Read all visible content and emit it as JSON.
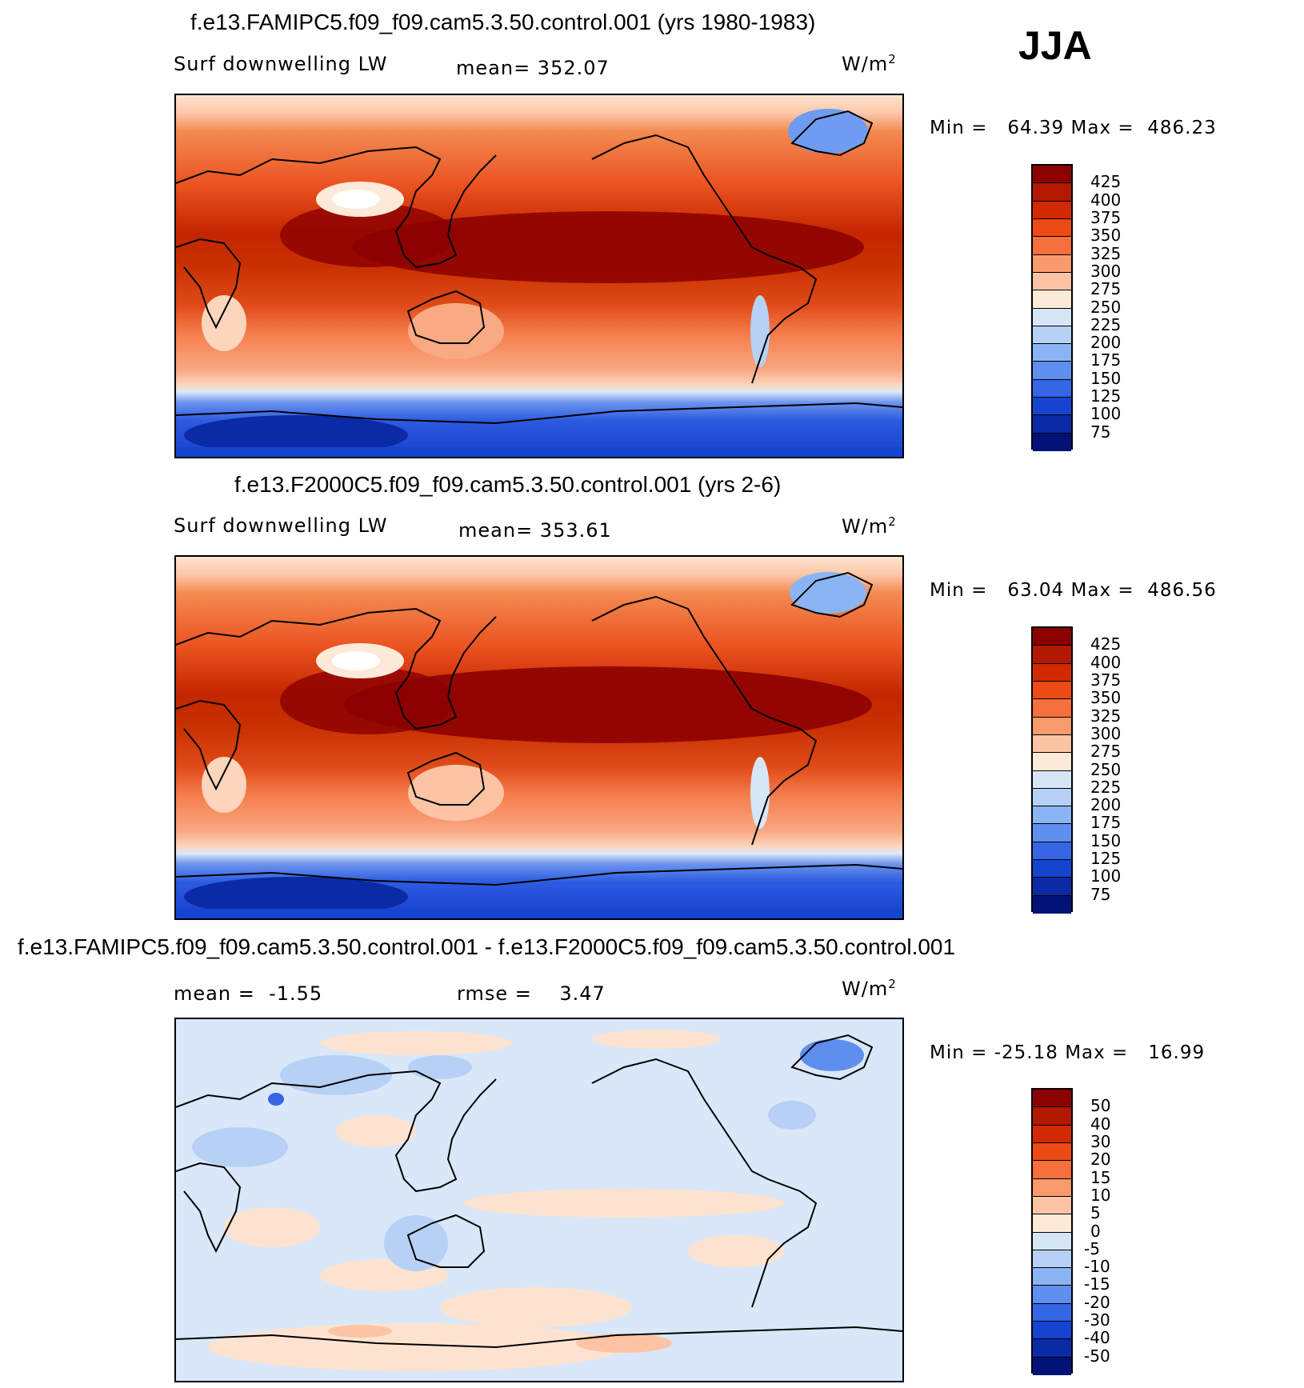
{
  "season": "JJA",
  "panels": [
    {
      "title": "f.e13.FAMIPC5.f09_f09.cam5.3.50.control.001 (yrs 1980-1983)",
      "variable": "Surf downwelling LW",
      "mean_text": "mean= 352.07",
      "units_base": "W/m",
      "units_exp": "2",
      "min_label": "Min =",
      "min_value": "64.39",
      "max_label": "Max =",
      "max_value": "486.23",
      "colorbar_labels": [
        "425",
        "400",
        "375",
        "350",
        "325",
        "300",
        "275",
        "250",
        "225",
        "200",
        "175",
        "150",
        "125",
        "100",
        "75"
      ],
      "colorbar_colors": [
        "#8b0000",
        "#b31900",
        "#d22a00",
        "#ec4a14",
        "#f6703d",
        "#f99a6c",
        "#fcc4a4",
        "#fde9d8",
        "#d6e6f7",
        "#b6d1f5",
        "#8bb4f5",
        "#5f8ef0",
        "#3466e6",
        "#1544d1",
        "#0a2aa6",
        "#001278"
      ]
    },
    {
      "title": "f.e13.F2000C5.f09_f09.cam5.3.50.control.001 (yrs 2-6)",
      "variable": "Surf downwelling LW",
      "mean_text": "mean= 353.61",
      "units_base": "W/m",
      "units_exp": "2",
      "min_label": "Min =",
      "min_value": "63.04",
      "max_label": "Max =",
      "max_value": "486.56",
      "colorbar_labels": [
        "425",
        "400",
        "375",
        "350",
        "325",
        "300",
        "275",
        "250",
        "225",
        "200",
        "175",
        "150",
        "125",
        "100",
        "75"
      ],
      "colorbar_colors": [
        "#8b0000",
        "#b31900",
        "#d22a00",
        "#ec4a14",
        "#f6703d",
        "#f99a6c",
        "#fcc4a4",
        "#fde9d8",
        "#d6e6f7",
        "#b6d1f5",
        "#8bb4f5",
        "#5f8ef0",
        "#3466e6",
        "#1544d1",
        "#0a2aa6",
        "#001278"
      ]
    },
    {
      "title": "f.e13.FAMIPC5.f09_f09.cam5.3.50.control.001 - f.e13.F2000C5.f09_f09.cam5.3.50.control.001",
      "mean_label": "mean =",
      "mean_value": "-1.55",
      "rmse_label": "rmse =",
      "rmse_value": "3.47",
      "units_base": "W/m",
      "units_exp": "2",
      "min_label": "Min =",
      "min_value": "-25.18",
      "max_label": "Max =",
      "max_value": "16.99",
      "colorbar_labels": [
        "50",
        "40",
        "30",
        "20",
        "15",
        "10",
        "5",
        "0",
        "-5",
        "-10",
        "-15",
        "-20",
        "-30",
        "-40",
        "-50"
      ],
      "colorbar_colors": [
        "#8b0000",
        "#b31900",
        "#d22a00",
        "#ec4a14",
        "#f6703d",
        "#f99a6c",
        "#fcc4a4",
        "#fde9d8",
        "#d6e6f7",
        "#b6d1f5",
        "#8bb4f5",
        "#5f8ef0",
        "#3466e6",
        "#1544d1",
        "#0a2aa6",
        "#001278"
      ]
    }
  ]
}
